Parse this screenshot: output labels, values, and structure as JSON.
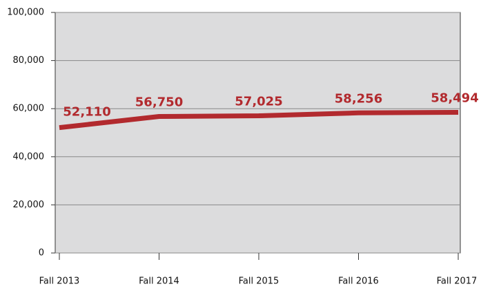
{
  "chart_data": {
    "type": "line",
    "categories": [
      "Fall 2013",
      "Fall 2014",
      "Fall 2015",
      "Fall 2016",
      "Fall 2017"
    ],
    "values": [
      52110,
      56750,
      57025,
      58256,
      58494
    ],
    "value_labels": [
      "52,110",
      "56,750",
      "57,025",
      "58,256",
      "58,494"
    ],
    "color": "#b22a2e",
    "ylim": [
      0,
      100000
    ],
    "yticks": [
      0,
      {
        "value": 20000,
        "label": "20,000"
      },
      {
        "value": 40000,
        "label": "40,000"
      },
      {
        "value": 60000,
        "label": "60,000"
      },
      {
        "value": 80000,
        "label": "80,000"
      },
      {
        "value": 100000,
        "label": "100,000"
      }
    ],
    "grid": true
  }
}
